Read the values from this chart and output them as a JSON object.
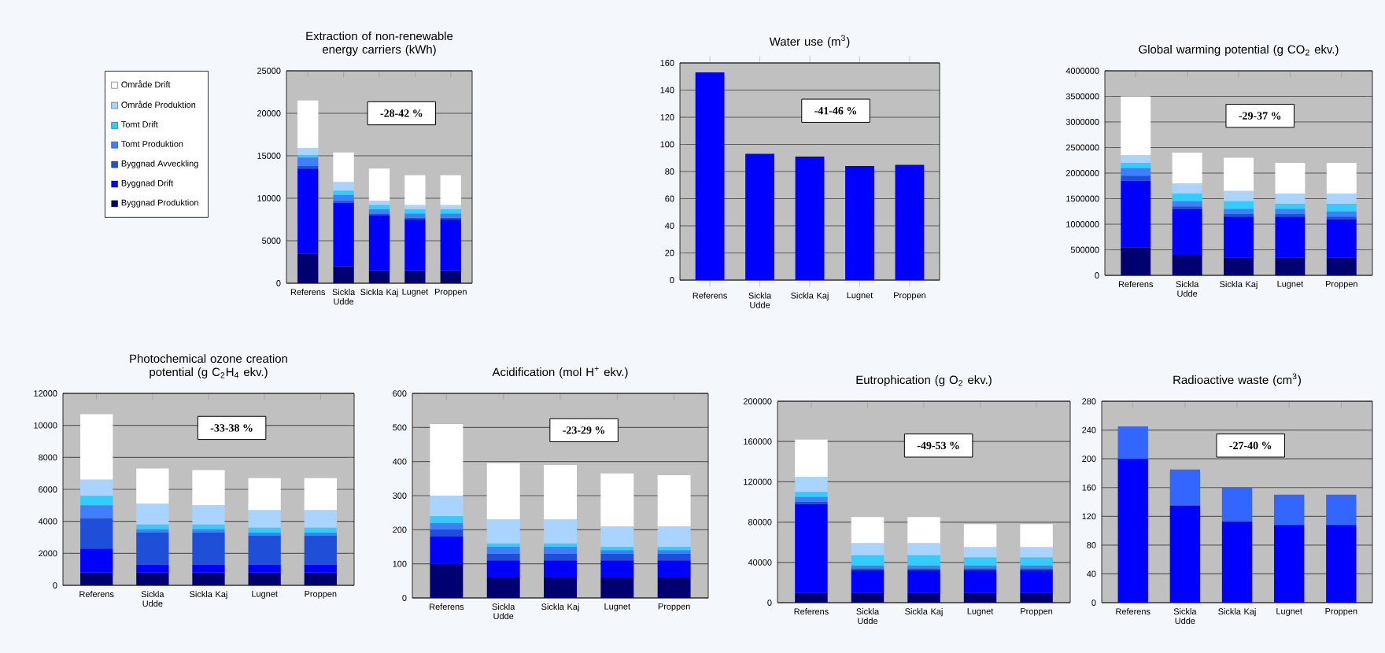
{
  "chart_data": [
    {
      "type": "bar",
      "stacked": true,
      "title": "Extraction of non-renewable energy carriers (kWh)",
      "categories": [
        "Referens",
        "Sickla Udde",
        "Sickla Kaj",
        "Lugnet",
        "Proppen"
      ],
      "ylim": [
        0,
        25000
      ],
      "yticks": [
        0,
        5000,
        10000,
        15000,
        20000,
        25000
      ],
      "grid": "y",
      "legend": "left",
      "annotations": [
        "-28-42 %"
      ],
      "series": [
        {
          "name": "Byggnad Produktion",
          "color": "#000070",
          "values": [
            3500,
            2000,
            1500,
            1500,
            1500
          ]
        },
        {
          "name": "Byggnad Drift",
          "color": "#0000ff",
          "values": [
            10000,
            7500,
            6500,
            6000,
            6000
          ]
        },
        {
          "name": "Byggnad Avveckling",
          "color": "#1f4fd8",
          "values": [
            300,
            200,
            200,
            200,
            200
          ]
        },
        {
          "name": "Tomt Produktion",
          "color": "#3f7fff",
          "values": [
            1000,
            700,
            500,
            500,
            500
          ]
        },
        {
          "name": "Tomt Drift",
          "color": "#33ccff",
          "values": [
            300,
            500,
            500,
            500,
            500
          ]
        },
        {
          "name": "Område Produktion",
          "color": "#a8d4ff",
          "values": [
            800,
            1000,
            500,
            500,
            500
          ]
        },
        {
          "name": "Område Drift",
          "color": "#ffffff",
          "values": [
            5600,
            3500,
            3800,
            3500,
            3500
          ]
        }
      ]
    },
    {
      "type": "bar",
      "title": "Water use (m$^{3}$)",
      "categories": [
        "Referens",
        "Sickla Udde",
        "Sickla Kaj",
        "Lugnet",
        "Proppen"
      ],
      "ylim": [
        0,
        160
      ],
      "yticks": [
        0,
        20,
        40,
        60,
        80,
        100,
        120,
        140,
        160
      ],
      "grid": "y",
      "annotations": [
        "-41-46 %"
      ],
      "color": "#0000ff",
      "values": [
        153,
        93,
        91,
        84,
        85
      ]
    },
    {
      "type": "bar",
      "stacked": true,
      "title": "Global warming potential (g CO$_{2}$ ekv.)",
      "categories": [
        "Referens",
        "Sickla Udde",
        "Sickla Kaj",
        "Lugnet",
        "Proppen"
      ],
      "ylim": [
        0,
        4000000
      ],
      "yticks": [
        0,
        500000,
        1000000,
        1500000,
        2000000,
        2500000,
        3000000,
        3500000,
        4000000
      ],
      "grid": "y",
      "annotations": [
        "-29-37 %"
      ],
      "series": [
        {
          "color": "#000070",
          "values": [
            550000,
            400000,
            350000,
            350000,
            350000
          ]
        },
        {
          "color": "#0000ff",
          "values": [
            1300000,
            900000,
            800000,
            800000,
            750000
          ]
        },
        {
          "color": "#1f4fd8",
          "values": [
            100000,
            50000,
            50000,
            50000,
            50000
          ]
        },
        {
          "color": "#3f7fff",
          "values": [
            150000,
            100000,
            100000,
            100000,
            100000
          ]
        },
        {
          "color": "#33ccff",
          "values": [
            100000,
            150000,
            150000,
            100000,
            150000
          ]
        },
        {
          "color": "#a8d4ff",
          "values": [
            150000,
            200000,
            200000,
            200000,
            200000
          ]
        },
        {
          "color": "#ffffff",
          "values": [
            1150000,
            600000,
            650000,
            600000,
            600000
          ]
        }
      ]
    },
    {
      "type": "bar",
      "stacked": true,
      "title": "Photochemical ozone creation potential (g C$_{2}$H$_{4}$ ekv.)",
      "categories": [
        "Referens",
        "Sickla Udde",
        "Sickla Kaj",
        "Lugnet",
        "Proppen"
      ],
      "ylim": [
        0,
        12000
      ],
      "yticks": [
        0,
        2000,
        4000,
        6000,
        8000,
        10000,
        12000
      ],
      "grid": "y",
      "annotations": [
        "-33-38 %"
      ],
      "series": [
        {
          "color": "#000070",
          "values": [
            800,
            800,
            800,
            800,
            800
          ]
        },
        {
          "color": "#0000ff",
          "values": [
            1500,
            500,
            500,
            500,
            500
          ]
        },
        {
          "color": "#1f4fd8",
          "values": [
            1900,
            2000,
            2000,
            1800,
            1800
          ]
        },
        {
          "color": "#3f7fff",
          "values": [
            800,
            200,
            200,
            200,
            200
          ]
        },
        {
          "color": "#33ccff",
          "values": [
            600,
            300,
            300,
            300,
            300
          ]
        },
        {
          "color": "#a8d4ff",
          "values": [
            1000,
            1300,
            1200,
            1100,
            1100
          ]
        },
        {
          "color": "#ffffff",
          "values": [
            4100,
            2200,
            2200,
            2000,
            2000
          ]
        }
      ]
    },
    {
      "type": "bar",
      "stacked": true,
      "title": "Acidification (mol H$^{+}$ ekv.)",
      "categories": [
        "Referens",
        "Sickla Udde",
        "Sickla Kaj",
        "Lugnet",
        "Proppen"
      ],
      "ylim": [
        0,
        600
      ],
      "yticks": [
        0,
        100,
        200,
        300,
        400,
        500,
        600
      ],
      "grid": "y",
      "annotations": [
        "-23-29 %"
      ],
      "series": [
        {
          "color": "#000070",
          "values": [
            100,
            60,
            60,
            60,
            60
          ]
        },
        {
          "color": "#0000ff",
          "values": [
            80,
            50,
            50,
            50,
            50
          ]
        },
        {
          "color": "#1f4fd8",
          "values": [
            20,
            20,
            20,
            20,
            20
          ]
        },
        {
          "color": "#3f7fff",
          "values": [
            20,
            20,
            20,
            10,
            10
          ]
        },
        {
          "color": "#33ccff",
          "values": [
            20,
            10,
            10,
            10,
            10
          ]
        },
        {
          "color": "#a8d4ff",
          "values": [
            60,
            70,
            70,
            60,
            60
          ]
        },
        {
          "color": "#ffffff",
          "values": [
            210,
            165,
            160,
            155,
            150
          ]
        }
      ]
    },
    {
      "type": "bar",
      "stacked": true,
      "title": "Eutrophication (g O$_{2}$ ekv.)",
      "categories": [
        "Referens",
        "Sickla Udde",
        "Sickla Kaj",
        "Lugnet",
        "Proppen"
      ],
      "ylim": [
        0,
        200000
      ],
      "yticks": [
        0,
        40000,
        80000,
        120000,
        160000,
        200000
      ],
      "grid": "y",
      "annotations": [
        "-49-53 %"
      ],
      "series": [
        {
          "color": "#000070",
          "values": [
            10000,
            10000,
            10000,
            10000,
            10000
          ]
        },
        {
          "color": "#0000ff",
          "values": [
            88000,
            22000,
            22000,
            22000,
            22000
          ]
        },
        {
          "color": "#1f4fd8",
          "values": [
            2000,
            2000,
            2000,
            2000,
            2000
          ]
        },
        {
          "color": "#3f7fff",
          "values": [
            5000,
            3000,
            3000,
            3000,
            3000
          ]
        },
        {
          "color": "#33ccff",
          "values": [
            5000,
            10000,
            10000,
            8000,
            8000
          ]
        },
        {
          "color": "#a8d4ff",
          "values": [
            15000,
            12000,
            12000,
            10000,
            10000
          ]
        },
        {
          "color": "#ffffff",
          "values": [
            37000,
            26000,
            26000,
            23000,
            23000
          ]
        }
      ]
    },
    {
      "type": "bar",
      "stacked": true,
      "title": "Radioactive waste (cm$^{3}$)",
      "categories": [
        "Referens",
        "Sickla Udde",
        "Sickla Kaj",
        "Lugnet",
        "Proppen"
      ],
      "ylim": [
        0,
        280
      ],
      "yticks": [
        0,
        40,
        80,
        120,
        160,
        200,
        240,
        280
      ],
      "grid": "y",
      "annotations": [
        "-27-40 %"
      ],
      "series": [
        {
          "color": "#0000ff",
          "values": [
            200,
            135,
            113,
            108,
            108
          ]
        },
        {
          "color": "#3366ff",
          "values": [
            45,
            50,
            47,
            42,
            42
          ]
        }
      ]
    }
  ]
}
